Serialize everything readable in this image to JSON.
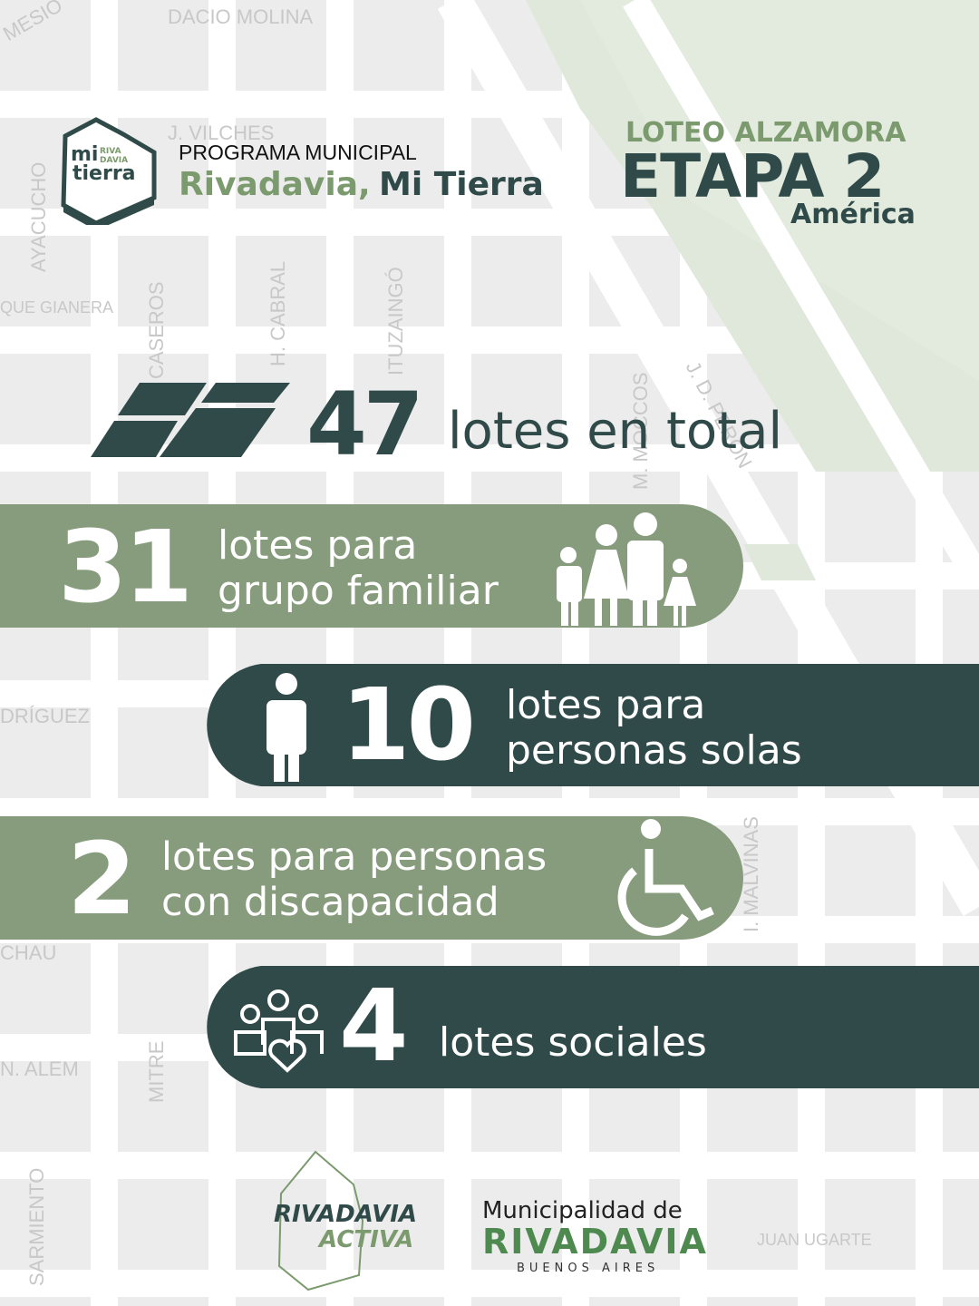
{
  "map_labels": [
    "DACIO MOLINA",
    "MESIO",
    "J. VILCHES",
    "AYACUCHO",
    "QUE GIANERA",
    "CASEROS",
    "H. CABRAL",
    "ITUZAINGÓ",
    "M. MOCCOS",
    "J. D. PERÓN",
    "DRÍGUEZ",
    "I. MALVINAS",
    "CHAU",
    "N. ALEM",
    "MITRE",
    "SARMIENTO",
    "JUAN UGARTE"
  ],
  "header": {
    "logo": [
      "mi",
      "RIVA",
      "DAVIA",
      "tierra"
    ],
    "program_label": "PROGRAMA MUNICIPAL",
    "program_name": [
      "Rivadavia,",
      "Mi Tierra"
    ]
  },
  "title": {
    "kicker": "LOTEO ALZAMORA",
    "main": "ETAPA 2",
    "sub": "América"
  },
  "total": {
    "number": "47",
    "text": "lotes en total"
  },
  "rows": [
    {
      "number": "31",
      "lines": [
        "lotes para",
        "grupo familiar"
      ]
    },
    {
      "number": "10",
      "lines": [
        "lotes para",
        "personas solas"
      ]
    },
    {
      "number": "2",
      "lines": [
        "lotes para personas",
        "con discapacidad"
      ]
    },
    {
      "number": "4",
      "lines": [
        "lotes sociales"
      ]
    }
  ],
  "footer": {
    "activa": [
      "RIVADAVIA",
      "ACTIVA"
    ],
    "municipalidad": [
      "Municipalidad de",
      "RIVADAVIA",
      "BUENOS AIRES"
    ]
  }
}
